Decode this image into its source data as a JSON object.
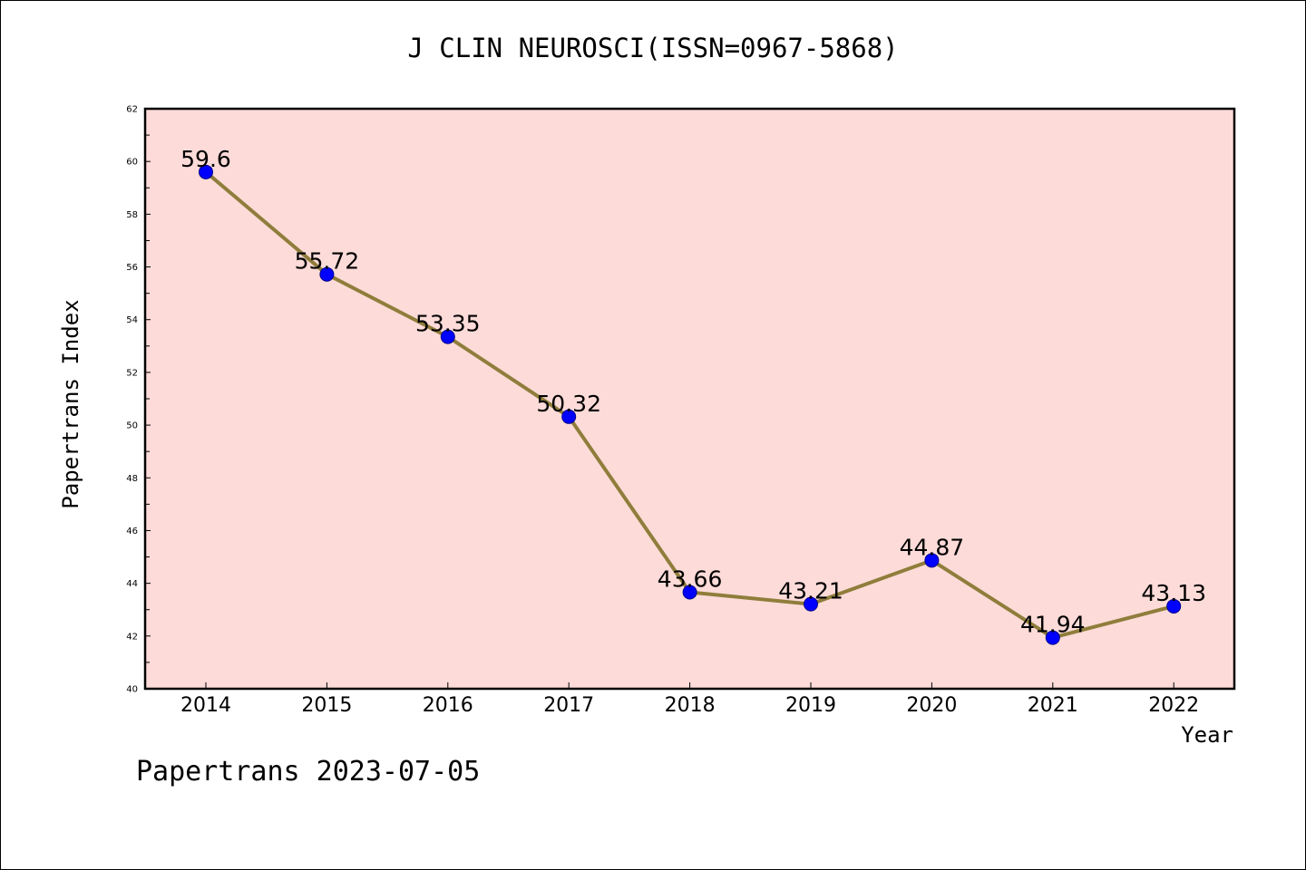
{
  "chart_data": {
    "type": "line",
    "title": "J CLIN NEUROSCI(ISSN=0967-5868)",
    "xlabel": "Year",
    "ylabel": "Papertrans Index",
    "footer": "Papertrans 2023-07-05",
    "categories": [
      "2014",
      "2015",
      "2016",
      "2017",
      "2018",
      "2019",
      "2020",
      "2021",
      "2022"
    ],
    "values": [
      59.6,
      55.72,
      53.35,
      50.32,
      43.66,
      43.21,
      44.87,
      41.94,
      43.13
    ],
    "data_labels": [
      "59.6",
      "55.72",
      "53.35",
      "50.32",
      "43.66",
      "43.21",
      "44.87",
      "41.94",
      "43.13"
    ],
    "ylim": [
      40,
      62
    ],
    "yticks": [
      40,
      42,
      44,
      46,
      48,
      50,
      52,
      54,
      56,
      58,
      60,
      62
    ],
    "grid": false,
    "colors": {
      "plot_background": "#fddbd8",
      "line": "#8f7d3b",
      "marker": "#0000ff"
    }
  }
}
